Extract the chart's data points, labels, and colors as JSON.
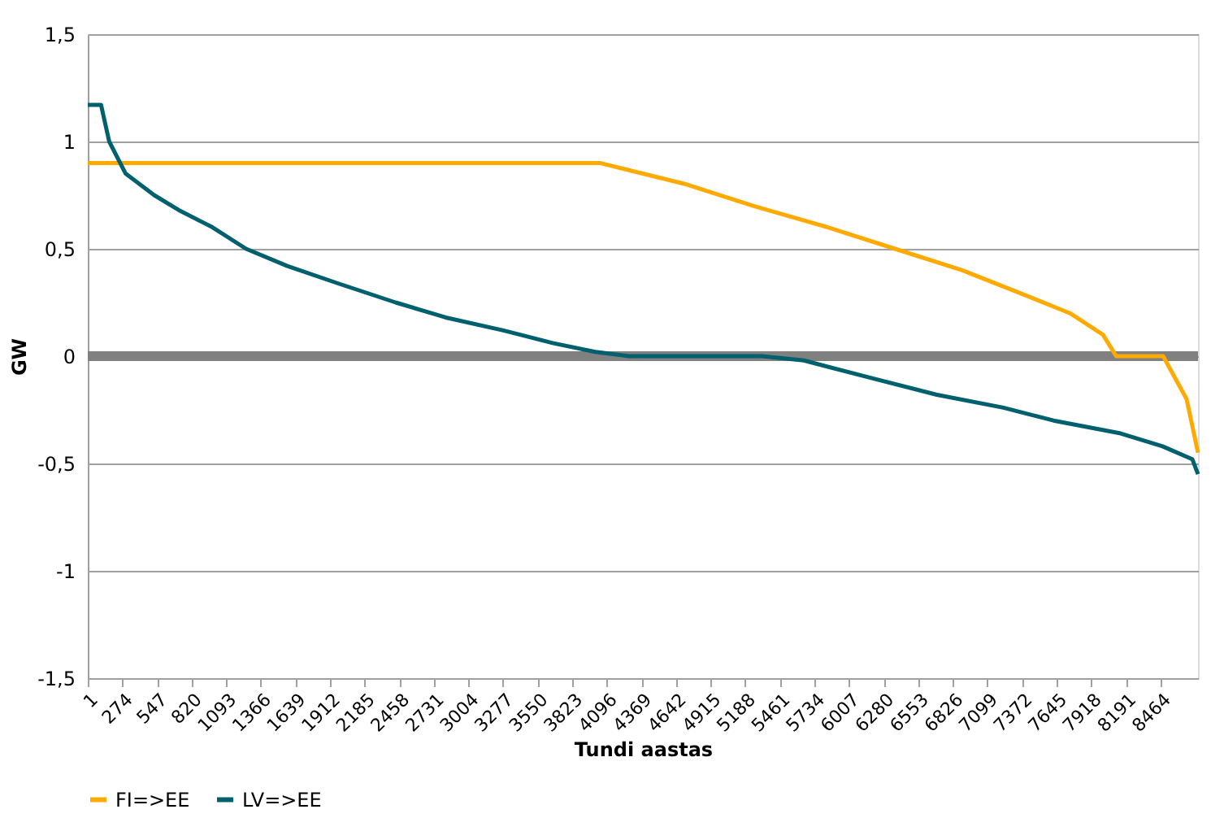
{
  "chart_data": {
    "type": "line",
    "xlabel": "Tundi aastas",
    "ylabel": "GW",
    "xlim": [
      1,
      8760
    ],
    "xticks": [
      1,
      274,
      547,
      820,
      1093,
      1366,
      1639,
      1912,
      2185,
      2458,
      2731,
      3004,
      3277,
      3550,
      3823,
      4096,
      4369,
      4642,
      4915,
      5188,
      5461,
      5734,
      6007,
      6280,
      6553,
      6826,
      7099,
      7372,
      7645,
      7918,
      8191,
      8464
    ],
    "ylim": [
      -1.5,
      1.5
    ],
    "yticks": [
      {
        "value": -1.5,
        "label": "-1,5"
      },
      -1,
      {
        "value": -0.5,
        "label": "-0,5"
      },
      0,
      {
        "value": 0.5,
        "label": "0,5"
      },
      1,
      {
        "value": 1.5,
        "label": "1,5"
      }
    ],
    "grid": "y",
    "legend": "bottom",
    "marker": "none",
    "line_style": "solid",
    "ref_lines": [
      {
        "axis": "y",
        "value": 0,
        "color": "#808080"
      }
    ],
    "series": [
      {
        "name": "FI=>EE",
        "color": "#ffaa00",
        "x": [
          1,
          4040,
          4725,
          5250,
          5840,
          6370,
          6900,
          7330,
          7750,
          8010,
          8115,
          8485,
          8670,
          8760
        ],
        "values": [
          0.9,
          0.9,
          0.8,
          0.7,
          0.6,
          0.5,
          0.4,
          0.3,
          0.2,
          0.1,
          0,
          0,
          -0.2,
          -0.45
        ]
      },
      {
        "name": "LV=>EE",
        "color": "#00606e",
        "x": [
          1,
          106,
          170,
          300,
          525,
          720,
          985,
          1250,
          1575,
          1970,
          2430,
          2825,
          3280,
          3675,
          4005,
          4270,
          5320,
          5650,
          6170,
          6700,
          7225,
          7620,
          8150,
          8480,
          8715,
          8760
        ],
        "values": [
          1.17,
          1.17,
          1.0,
          0.85,
          0.75,
          0.68,
          0.6,
          0.5,
          0.42,
          0.34,
          0.25,
          0.18,
          0.12,
          0.06,
          0.02,
          0,
          0,
          -0.02,
          -0.1,
          -0.18,
          -0.24,
          -0.3,
          -0.36,
          -0.42,
          -0.48,
          -0.55
        ]
      }
    ]
  }
}
